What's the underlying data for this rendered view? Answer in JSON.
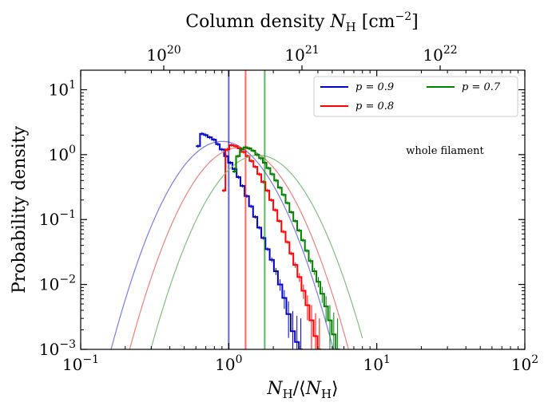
{
  "chart_data": {
    "type": "line",
    "title": "",
    "xlabel": "N_H/⟨N_H⟩",
    "ylabel": "Probability density",
    "top_xlabel": "Column density N_H [cm^-2]",
    "xscale": "log",
    "yscale": "log",
    "xlim": [
      0.1,
      100
    ],
    "ylim": [
      0.001,
      20
    ],
    "x_ticks": [
      {
        "value": 0.1,
        "base": "10",
        "exp": "−1"
      },
      {
        "value": 1,
        "base": "10",
        "exp": "0"
      },
      {
        "value": 10,
        "base": "10",
        "exp": "1"
      },
      {
        "value": 100,
        "base": "10",
        "exp": "2"
      }
    ],
    "y_ticks": [
      {
        "value": 0.001,
        "base": "10",
        "exp": "−3"
      },
      {
        "value": 0.01,
        "base": "10",
        "exp": "−2"
      },
      {
        "value": 0.1,
        "base": "10",
        "exp": "−1"
      },
      {
        "value": 1,
        "base": "10",
        "exp": "0"
      },
      {
        "value": 10,
        "base": "10",
        "exp": "1"
      }
    ],
    "top_ticks": [
      {
        "base": "10",
        "exp": "20"
      },
      {
        "base": "10",
        "exp": "21"
      },
      {
        "base": "10",
        "exp": "22"
      }
    ],
    "annotation": "whole filament",
    "legend_position": "top-right",
    "series": [
      {
        "name": "p = 0.9",
        "color": "#0000cc",
        "fit_color": "#7b7bea",
        "vline": 1.0,
        "fit": {
          "sigma_ln": 0.45,
          "peak": 1.6
        },
        "hist_x": [
          0.6,
          0.64,
          0.68,
          0.72,
          0.77,
          0.82,
          0.87,
          0.93,
          0.99,
          1.06,
          1.13,
          1.2,
          1.28,
          1.37,
          1.46,
          1.56,
          1.66,
          1.77,
          1.89,
          2.02,
          2.15,
          2.3,
          2.45,
          2.62,
          2.8,
          2.98
        ],
        "hist_y": [
          1.35,
          2.1,
          2.0,
          1.85,
          1.7,
          1.45,
          1.2,
          0.95,
          0.75,
          0.6,
          0.45,
          0.33,
          0.23,
          0.16,
          0.11,
          0.075,
          0.052,
          0.035,
          0.024,
          0.016,
          0.01,
          0.0062,
          0.0035,
          0.0019,
          0.0013,
          0.001
        ]
      },
      {
        "name": "p = 0.8",
        "color": "#ff0000",
        "fit_color": "#f07f7f",
        "vline": 1.3,
        "fit": {
          "sigma_ln": 0.45,
          "peak": 1.28
        },
        "hist_x": [
          0.9,
          0.95,
          1.01,
          1.08,
          1.15,
          1.22,
          1.3,
          1.38,
          1.47,
          1.56,
          1.66,
          1.77,
          1.88,
          2.0,
          2.13,
          2.27,
          2.42,
          2.57,
          2.73,
          2.91,
          3.1,
          3.3,
          3.51,
          3.74,
          3.98
        ],
        "hist_y": [
          0.28,
          1.2,
          1.4,
          1.35,
          1.25,
          1.1,
          0.95,
          0.8,
          0.65,
          0.5,
          0.38,
          0.28,
          0.2,
          0.14,
          0.095,
          0.065,
          0.045,
          0.03,
          0.02,
          0.013,
          0.008,
          0.0048,
          0.0028,
          0.0016,
          0.001
        ]
      },
      {
        "name": "p = 0.7",
        "color": "#008000",
        "fit_color": "#80c080",
        "vline": 1.75,
        "fit": {
          "sigma_ln": 0.45,
          "peak": 0.98
        },
        "hist_x": [
          1.06,
          1.12,
          1.19,
          1.26,
          1.34,
          1.42,
          1.51,
          1.6,
          1.7,
          1.8,
          1.91,
          2.03,
          2.15,
          2.28,
          2.42,
          2.57,
          2.73,
          2.9,
          3.08,
          3.27,
          3.47,
          3.68,
          3.91,
          4.15,
          4.41,
          4.68,
          4.97,
          5.28
        ],
        "hist_y": [
          0.55,
          0.95,
          1.2,
          1.3,
          1.25,
          1.15,
          1.0,
          0.88,
          0.75,
          0.62,
          0.5,
          0.4,
          0.31,
          0.24,
          0.18,
          0.13,
          0.095,
          0.068,
          0.048,
          0.033,
          0.023,
          0.016,
          0.011,
          0.0072,
          0.0046,
          0.0028,
          0.0017,
          0.001
        ]
      }
    ]
  }
}
